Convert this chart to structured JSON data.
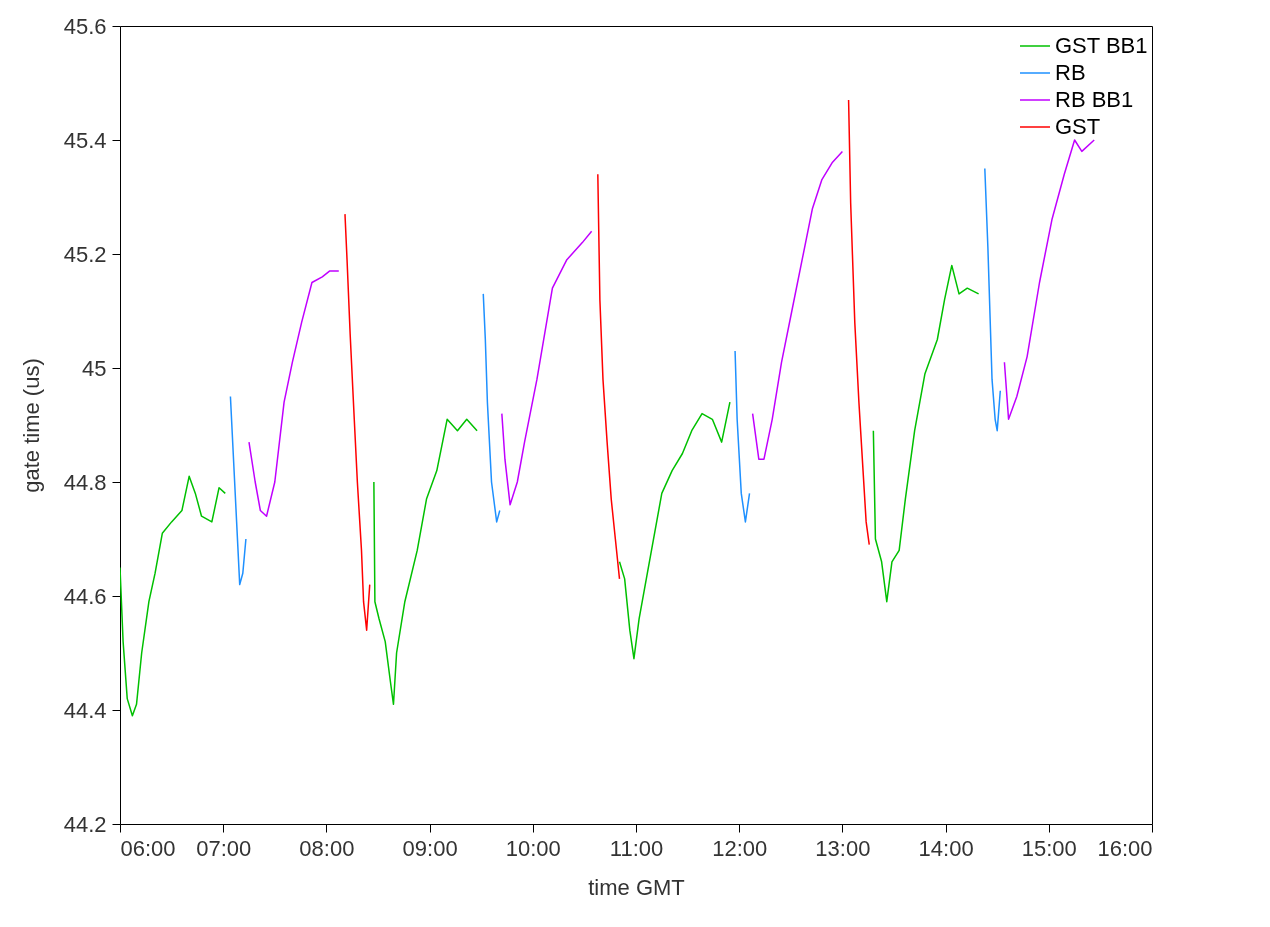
{
  "chart_data": {
    "type": "line",
    "xlabel": "time GMT",
    "ylabel": "gate time (us)",
    "xlim": [
      6,
      16
    ],
    "xticks": [
      {
        "value": 6,
        "label": "06:00"
      },
      {
        "value": 7,
        "label": "07:00"
      },
      {
        "value": 8,
        "label": "08:00"
      },
      {
        "value": 9,
        "label": "09:00"
      },
      {
        "value": 10,
        "label": "10:00"
      },
      {
        "value": 11,
        "label": "11:00"
      },
      {
        "value": 12,
        "label": "12:00"
      },
      {
        "value": 13,
        "label": "13:00"
      },
      {
        "value": 14,
        "label": "14:00"
      },
      {
        "value": 15,
        "label": "15:00"
      },
      {
        "value": 16,
        "label": "16:00"
      }
    ],
    "ylim": [
      44.2,
      45.6
    ],
    "yticks": [
      44.2,
      44.4,
      44.6,
      44.8,
      45,
      45.2,
      45.4,
      45.6
    ],
    "grid": false,
    "legend": "top right",
    "marker": "none",
    "line_style": "solid",
    "series": [
      {
        "name": "GST BB1",
        "color": "#00c000",
        "x": [
          6.0,
          6.03,
          6.07,
          6.12,
          6.16,
          6.21,
          6.28,
          6.34,
          6.41,
          6.5,
          6.6,
          6.67,
          6.73,
          6.79,
          6.89,
          6.96,
          7.02,
          7.5,
          8.46,
          8.47,
          8.51,
          8.57,
          8.62,
          8.65,
          8.68,
          8.76,
          8.88,
          8.97,
          9.07,
          9.17,
          9.27,
          9.36,
          9.46,
          10.0,
          10.84,
          10.89,
          10.94,
          10.98,
          11.03,
          11.11,
          11.25,
          11.35,
          11.45,
          11.54,
          11.64,
          11.74,
          11.83,
          11.91,
          12.5,
          13.3,
          13.32,
          13.38,
          13.43,
          13.48,
          13.55,
          13.61,
          13.7,
          13.8,
          13.92,
          13.99,
          14.06,
          14.13,
          14.21,
          14.32
        ],
        "values": [
          44.65,
          44.52,
          44.42,
          44.39,
          44.41,
          44.5,
          44.59,
          44.64,
          44.71,
          44.73,
          44.75,
          44.81,
          44.78,
          44.74,
          44.73,
          44.79,
          44.78,
          null,
          44.8,
          44.59,
          44.56,
          44.52,
          44.45,
          44.41,
          44.5,
          44.59,
          44.68,
          44.77,
          44.82,
          44.91,
          44.89,
          44.91,
          44.89,
          null,
          44.66,
          44.63,
          44.54,
          44.49,
          44.56,
          44.64,
          44.78,
          44.82,
          44.85,
          44.89,
          44.92,
          44.91,
          44.87,
          44.94,
          null,
          44.89,
          44.7,
          44.66,
          44.59,
          44.66,
          44.68,
          44.77,
          44.89,
          44.99,
          45.05,
          45.12,
          45.18,
          45.13,
          45.14,
          45.13
        ]
      },
      {
        "name": "RB",
        "color": "#1e90ff",
        "x": [
          7.07,
          7.1,
          7.13,
          7.16,
          7.19,
          7.22,
          8.5,
          9.52,
          9.54,
          9.56,
          9.6,
          9.65,
          9.68,
          11.0,
          11.96,
          11.98,
          12.02,
          12.06,
          12.1,
          13.5,
          14.38,
          14.41,
          14.45,
          14.48,
          14.5,
          14.53
        ],
        "values": [
          44.95,
          44.84,
          44.73,
          44.62,
          44.64,
          44.7,
          null,
          45.13,
          45.05,
          44.94,
          44.8,
          44.73,
          44.75,
          null,
          45.03,
          44.91,
          44.78,
          44.73,
          44.78,
          null,
          45.35,
          45.21,
          44.98,
          44.91,
          44.89,
          44.96
        ]
      },
      {
        "name": "RB BB1",
        "color": "#c000ff",
        "x": [
          7.25,
          7.31,
          7.36,
          7.42,
          7.5,
          7.59,
          7.67,
          7.76,
          7.86,
          7.96,
          8.03,
          8.12,
          9.0,
          9.7,
          9.73,
          9.78,
          9.85,
          9.92,
          10.04,
          10.19,
          10.33,
          10.48,
          10.57,
          11.5,
          12.13,
          12.19,
          12.24,
          12.32,
          12.41,
          12.51,
          12.61,
          12.71,
          12.8,
          12.9,
          13.0,
          14.0,
          14.57,
          14.61,
          14.69,
          14.79,
          14.91,
          15.03,
          15.15,
          15.25,
          15.32,
          15.44
        ],
        "values": [
          44.87,
          44.8,
          44.75,
          44.74,
          44.8,
          44.94,
          45.01,
          45.08,
          45.15,
          45.16,
          45.17,
          45.17,
          null,
          44.92,
          44.84,
          44.76,
          44.8,
          44.87,
          44.98,
          45.14,
          45.19,
          45.22,
          45.24,
          null,
          44.92,
          44.84,
          44.84,
          44.91,
          45.01,
          45.1,
          45.19,
          45.28,
          45.33,
          45.36,
          45.38,
          null,
          45.01,
          44.91,
          44.95,
          45.02,
          45.15,
          45.26,
          45.34,
          45.4,
          45.38,
          45.4
        ]
      },
      {
        "name": "GST",
        "color": "#ff0000",
        "x": [
          8.18,
          8.2,
          8.23,
          8.27,
          8.3,
          8.34,
          8.36,
          8.39,
          8.42,
          9.5,
          10.63,
          10.65,
          10.68,
          10.72,
          10.76,
          10.8,
          10.84,
          12.0,
          13.06,
          13.08,
          13.12,
          13.16,
          13.2,
          13.23,
          13.26
        ],
        "values": [
          45.27,
          45.19,
          45.06,
          44.91,
          44.8,
          44.68,
          44.59,
          44.54,
          44.62,
          null,
          45.34,
          45.12,
          44.98,
          44.87,
          44.77,
          44.7,
          44.63,
          null,
          45.47,
          45.29,
          45.08,
          44.94,
          44.82,
          44.73,
          44.69
        ]
      }
    ]
  }
}
